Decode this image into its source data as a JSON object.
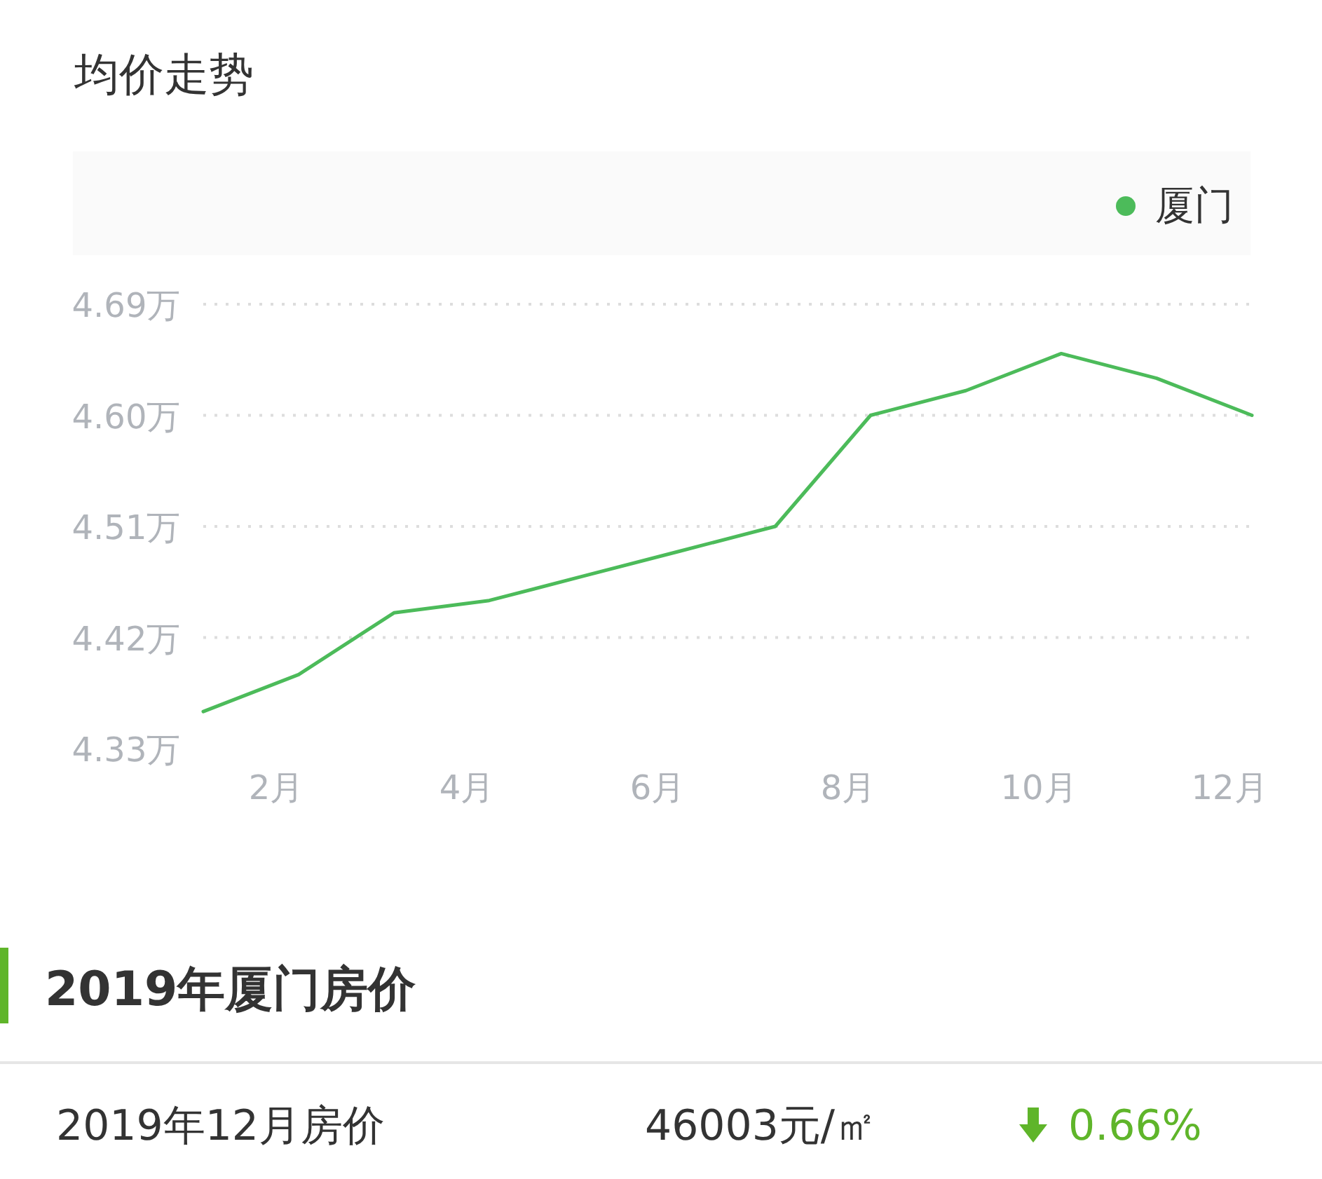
{
  "chart_data": {
    "type": "line",
    "title": "均价走势",
    "categories": [
      null,
      "2月",
      null,
      "4月",
      null,
      "6月",
      null,
      "8月",
      null,
      "10月",
      null,
      "12月"
    ],
    "series": [
      {
        "name": "厦门",
        "color": "#4cbb5a",
        "values": [
          4.36,
          4.39,
          4.44,
          4.45,
          4.47,
          4.49,
          4.51,
          4.6,
          4.62,
          4.65,
          4.63,
          4.6
        ]
      }
    ],
    "ylim": [
      4.33,
      4.69
    ],
    "yticks": [
      {
        "value": 4.33,
        "label": "4.33万"
      },
      {
        "value": 4.42,
        "label": "4.42万"
      },
      {
        "value": 4.51,
        "label": "4.51万"
      },
      {
        "value": 4.6,
        "label": "4.60万"
      },
      {
        "value": 4.69,
        "label": "4.69万"
      }
    ],
    "grid": "y",
    "legend": "top right",
    "marker": "none",
    "line_style": "solid",
    "annotations": [
      "2019年厦门房价",
      "2019年12月房价",
      "46003元/㎡",
      "0.66%"
    ]
  }
}
